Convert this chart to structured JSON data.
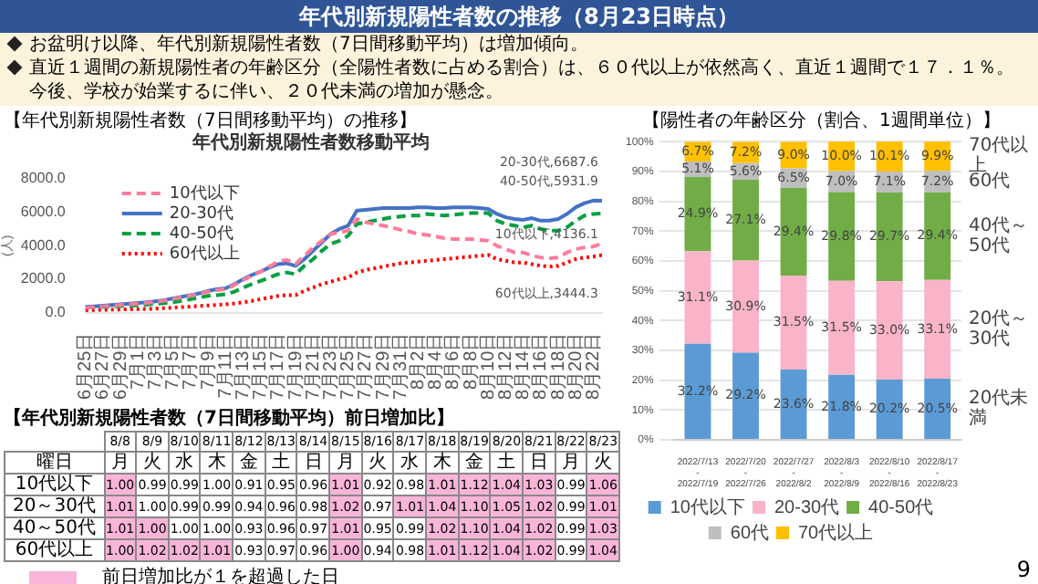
{
  "chart_data": [
    {
      "type": "other",
      "title": "年代別新規陽性者数の推移（8月23日時点）",
      "annotations": [
        "お盆明け以降、年代別新規陽性者数（7日間移動平均）は増加傾向。",
        "直近１週間の新規陽性者の年齢区分（全陽性者数に占める割合）は、６０代以上が依然高く、直近１週間で１７．１％。今後、学校が始業するに伴い、２０代未満の増加が懸念。",
        "9"
      ]
    },
    {
      "type": "line",
      "title": "【年代別新規陽性者数（7日間移動平均）の推移】",
      "subtitle": "年代別新規陽性者数移動平均",
      "ylabel": "(人)",
      "categories": [
        "6月25日",
        null,
        "6月27日",
        null,
        "6月29日",
        null,
        "7月1日",
        null,
        "7月3日",
        null,
        "7月5日",
        null,
        "7月7日",
        null,
        "7月9日",
        null,
        "7月11日",
        null,
        "7月13日",
        null,
        "7月15日",
        null,
        "7月17日",
        null,
        "7月19日",
        null,
        "7月21日",
        null,
        "7月23日",
        null,
        "7月25日",
        null,
        "7月27日",
        null,
        "7月29日",
        null,
        "7月31日",
        null,
        "8月2日",
        null,
        "8月4日",
        null,
        "8月6日",
        null,
        "8月8日",
        null,
        "8月10日",
        null,
        "8月12日",
        null,
        "8月14日",
        null,
        "8月16日",
        null,
        "8月18日",
        null,
        "8月20日",
        null,
        "8月22日",
        null
      ],
      "series": [
        {
          "name": "10代以下",
          "color": "#ff7c9c",
          "line_style": "dashed",
          "values": [
            300,
            330,
            370,
            420,
            460,
            500,
            540,
            580,
            640,
            720,
            820,
            920,
            1020,
            1120,
            1250,
            1350,
            1400,
            1650,
            1950,
            2200,
            2450,
            2750,
            3050,
            3150,
            2900,
            3400,
            3900,
            4300,
            4700,
            4800,
            4900,
            5600,
            5400,
            5300,
            5200,
            5100,
            4950,
            4850,
            4700,
            4650,
            4550,
            4450,
            4400,
            4400,
            4400,
            4350,
            4300,
            4000,
            3800,
            3600,
            3600,
            3400,
            3300,
            3250,
            3300,
            3600,
            3800,
            3900,
            3950,
            4136.1
          ]
        },
        {
          "name": "20-30代",
          "color": "#4472c4",
          "line_style": "solid",
          "values": [
            350,
            380,
            420,
            460,
            500,
            540,
            580,
            620,
            680,
            750,
            850,
            950,
            1050,
            1150,
            1300,
            1400,
            1450,
            1700,
            2000,
            2250,
            2450,
            2700,
            2900,
            2950,
            2800,
            3200,
            3700,
            4200,
            4700,
            5000,
            5200,
            6100,
            6150,
            6200,
            6250,
            6250,
            6250,
            6250,
            6300,
            6300,
            6250,
            6250,
            6300,
            6300,
            6300,
            6250,
            6200,
            5900,
            5700,
            5600,
            5550,
            5650,
            5500,
            5500,
            5600,
            5900,
            6300,
            6550,
            6700,
            6687.6
          ]
        },
        {
          "name": "40-50代",
          "color": "#00a040",
          "line_style": "dashed",
          "values": [
            300,
            320,
            340,
            360,
            390,
            420,
            450,
            480,
            520,
            570,
            620,
            700,
            800,
            900,
            1000,
            1050,
            1100,
            1250,
            1500,
            1700,
            1900,
            2100,
            2300,
            2400,
            2300,
            2800,
            3200,
            3700,
            4100,
            4300,
            4600,
            5300,
            5400,
            5500,
            5600,
            5700,
            5750,
            5800,
            5800,
            5900,
            5850,
            5800,
            5850,
            5900,
            5950,
            5950,
            5950,
            5500,
            5300,
            5200,
            5100,
            5200,
            5000,
            4900,
            4900,
            5100,
            5500,
            5800,
            5900,
            5931.9
          ]
        },
        {
          "name": "60代以上",
          "color": "#ff0000",
          "line_style": "dotted",
          "values": [
            150,
            160,
            170,
            180,
            190,
            200,
            210,
            220,
            240,
            270,
            300,
            330,
            360,
            400,
            430,
            460,
            500,
            550,
            620,
            700,
            800,
            900,
            1000,
            1050,
            1050,
            1300,
            1500,
            1700,
            1850,
            2000,
            2100,
            2400,
            2550,
            2650,
            2750,
            2850,
            2950,
            3000,
            3050,
            3100,
            3150,
            3200,
            3250,
            3300,
            3350,
            3400,
            3450,
            3200,
            3100,
            3000,
            3000,
            2900,
            2800,
            2750,
            2800,
            3000,
            3200,
            3300,
            3350,
            3444.3
          ]
        }
      ],
      "ylim": [
        0,
        8000
      ],
      "yticks": [
        {
          "value": 0,
          "label": "0.0"
        },
        {
          "value": 2000,
          "label": "2000.0"
        },
        {
          "value": 4000,
          "label": "4000.0"
        },
        {
          "value": 6000,
          "label": "6000.0"
        },
        {
          "value": 8000,
          "label": "8000.0"
        }
      ],
      "legend": "top left",
      "marker": "none",
      "annotations": [
        "20-30代,6687.6",
        "40-50代,5931.9",
        "10代以下,4136.1",
        "60代以上,3444.3"
      ]
    },
    {
      "type": "bar",
      "stacked": true,
      "title": "【陽性者の年齢区分（割合、1週間単位）】",
      "categories": [
        "2022/7/13 - 2022/7/19",
        "2022/7/20 - 2022/7/26",
        "2022/7/27 - 2022/8/2",
        "2022/8/3 - 2022/8/9",
        "2022/8/10 - 2022/8/16",
        "2022/8/17 - 2022/8/23"
      ],
      "series": [
        {
          "name": "10代以下",
          "color": "#5b9bd5",
          "values": [
            32.2,
            29.2,
            23.6,
            21.8,
            20.2,
            20.5
          ],
          "value_labels": [
            "32.2%",
            "29.2%",
            "23.6%",
            "21.8%",
            "20.2%",
            "20.5%"
          ]
        },
        {
          "name": "20-30代",
          "color": "#f9b4c8",
          "values": [
            31.1,
            30.9,
            31.5,
            31.5,
            33.0,
            33.1
          ],
          "value_labels": [
            "31.1%",
            "30.9%",
            "31.5%",
            "31.5%",
            "33.0%",
            "33.1%"
          ]
        },
        {
          "name": "40-50代",
          "color": "#70ad47",
          "values": [
            24.9,
            27.1,
            29.4,
            29.8,
            29.7,
            29.4
          ],
          "value_labels": [
            "24.9%",
            "27.1%",
            "29.4%",
            "29.8%",
            "29.7%",
            "29.4%"
          ]
        },
        {
          "name": "60代",
          "color": "#bfbfbf",
          "values": [
            5.1,
            5.6,
            6.5,
            7.0,
            7.1,
            7.2
          ],
          "value_labels": [
            "5.1%",
            "5.6%",
            "6.5%",
            "7.0%",
            "7.1%",
            "7.2%"
          ]
        },
        {
          "name": "70代以上",
          "color": "#ffc000",
          "values": [
            6.7,
            7.2,
            9.0,
            10.0,
            10.1,
            9.9
          ],
          "value_labels": [
            "6.7%",
            "7.2%",
            "9.0%",
            "10.0%",
            "10.1%",
            "9.9%"
          ]
        }
      ],
      "ylim": [
        0,
        100
      ],
      "yticks": [
        {
          "value": 0,
          "label": "0%"
        },
        {
          "value": 10,
          "label": "10%"
        },
        {
          "value": 20,
          "label": "20%"
        },
        {
          "value": 30,
          "label": "30%"
        },
        {
          "value": 40,
          "label": "40%"
        },
        {
          "value": 50,
          "label": "50%"
        },
        {
          "value": 60,
          "label": "60%"
        },
        {
          "value": 70,
          "label": "70%"
        },
        {
          "value": 80,
          "label": "80%"
        },
        {
          "value": 90,
          "label": "90%"
        },
        {
          "value": 100,
          "label": "100%"
        }
      ],
      "grid": "y",
      "legend": "bottom",
      "annotations": [
        "70代以上",
        "60代",
        "40代～50代",
        "20代～30代",
        "20代未満"
      ]
    },
    {
      "type": "heatmap",
      "title": "【年代別新規陽性者数（7日間移動平均）前日増加比】",
      "categories": [
        "8/8",
        "8/9",
        "8/10",
        "8/11",
        "8/12",
        "8/13",
        "8/14",
        "8/15",
        "8/16",
        "8/17",
        "8/18",
        "8/19",
        "8/20",
        "8/21",
        "8/22",
        "8/23"
      ],
      "y_categories": [
        "10代以下",
        "20～30代",
        "40～50代",
        "60代以上"
      ],
      "cells": [
        [
          1.0,
          0.99,
          0.99,
          1.0,
          0.91,
          0.95,
          0.96,
          1.01,
          0.92,
          0.98,
          1.01,
          1.12,
          1.04,
          1.03,
          0.99,
          1.06
        ],
        [
          1.01,
          1.0,
          0.99,
          0.99,
          0.94,
          0.96,
          0.98,
          1.02,
          0.97,
          1.01,
          1.04,
          1.1,
          1.05,
          1.02,
          0.99,
          1.01
        ],
        [
          1.01,
          1.0,
          1.0,
          1.0,
          0.93,
          0.96,
          0.97,
          1.01,
          0.95,
          0.99,
          1.02,
          1.1,
          1.04,
          1.02,
          0.99,
          1.03
        ],
        [
          1.0,
          1.02,
          1.02,
          1.01,
          0.93,
          0.97,
          0.96,
          1.0,
          0.94,
          0.98,
          1.01,
          1.12,
          1.04,
          1.02,
          0.99,
          1.04
        ]
      ],
      "cell_labels": [
        [
          "1.00",
          "0.99",
          "0.99",
          "1.00",
          "0.91",
          "0.95",
          "0.96",
          "1.01",
          "0.92",
          "0.98",
          "1.01",
          "1.12",
          "1.04",
          "1.03",
          "0.99",
          "1.06"
        ],
        [
          "1.01",
          "1.00",
          "0.99",
          "0.99",
          "0.94",
          "0.96",
          "0.98",
          "1.02",
          "0.97",
          "1.01",
          "1.04",
          "1.10",
          "1.05",
          "1.02",
          "0.99",
          "1.01"
        ],
        [
          "1.01",
          "1.00",
          "1.00",
          "1.00",
          "0.93",
          "0.96",
          "0.97",
          "1.01",
          "0.95",
          "0.99",
          "1.02",
          "1.10",
          "1.04",
          "1.02",
          "0.99",
          "1.03"
        ],
        [
          "1.00",
          "1.02",
          "1.02",
          "1.01",
          "0.93",
          "0.97",
          "0.96",
          "1.00",
          "0.94",
          "0.98",
          "1.01",
          "1.12",
          "1.04",
          "1.02",
          "0.99",
          "1.04"
        ]
      ],
      "colors": [
        [
          "#f9b4d9",
          "#ffffff",
          "#ffffff",
          "#ffffff",
          "#ffffff",
          "#ffffff",
          "#ffffff",
          "#f9b4d9",
          "#ffffff",
          "#ffffff",
          "#f9b4d9",
          "#f9b4d9",
          "#f9b4d9",
          "#f9b4d9",
          "#ffffff",
          "#f9b4d9"
        ],
        [
          "#f9b4d9",
          "#ffffff",
          "#ffffff",
          "#ffffff",
          "#ffffff",
          "#ffffff",
          "#ffffff",
          "#f9b4d9",
          "#ffffff",
          "#f9b4d9",
          "#f9b4d9",
          "#f9b4d9",
          "#f9b4d9",
          "#f9b4d9",
          "#ffffff",
          "#f9b4d9"
        ],
        [
          "#f9b4d9",
          "#f9b4d9",
          "#ffffff",
          "#ffffff",
          "#ffffff",
          "#ffffff",
          "#ffffff",
          "#f9b4d9",
          "#ffffff",
          "#ffffff",
          "#f9b4d9",
          "#f9b4d9",
          "#f9b4d9",
          "#f9b4d9",
          "#ffffff",
          "#f9b4d9"
        ],
        [
          "#f9b4d9",
          "#f9b4d9",
          "#f9b4d9",
          "#f9b4d9",
          "#ffffff",
          "#ffffff",
          "#ffffff",
          "#f9b4d9",
          "#ffffff",
          "#ffffff",
          "#f9b4d9",
          "#f9b4d9",
          "#f9b4d9",
          "#f9b4d9",
          "#ffffff",
          "#f9b4d9"
        ]
      ],
      "annotations": [
        "曜日",
        "月",
        "火",
        "水",
        "木",
        "金",
        "土",
        "日",
        "月",
        "火",
        "水",
        "木",
        "金",
        "土",
        "日",
        "月",
        "火",
        "前日増加比が１を超過した日"
      ]
    }
  ]
}
